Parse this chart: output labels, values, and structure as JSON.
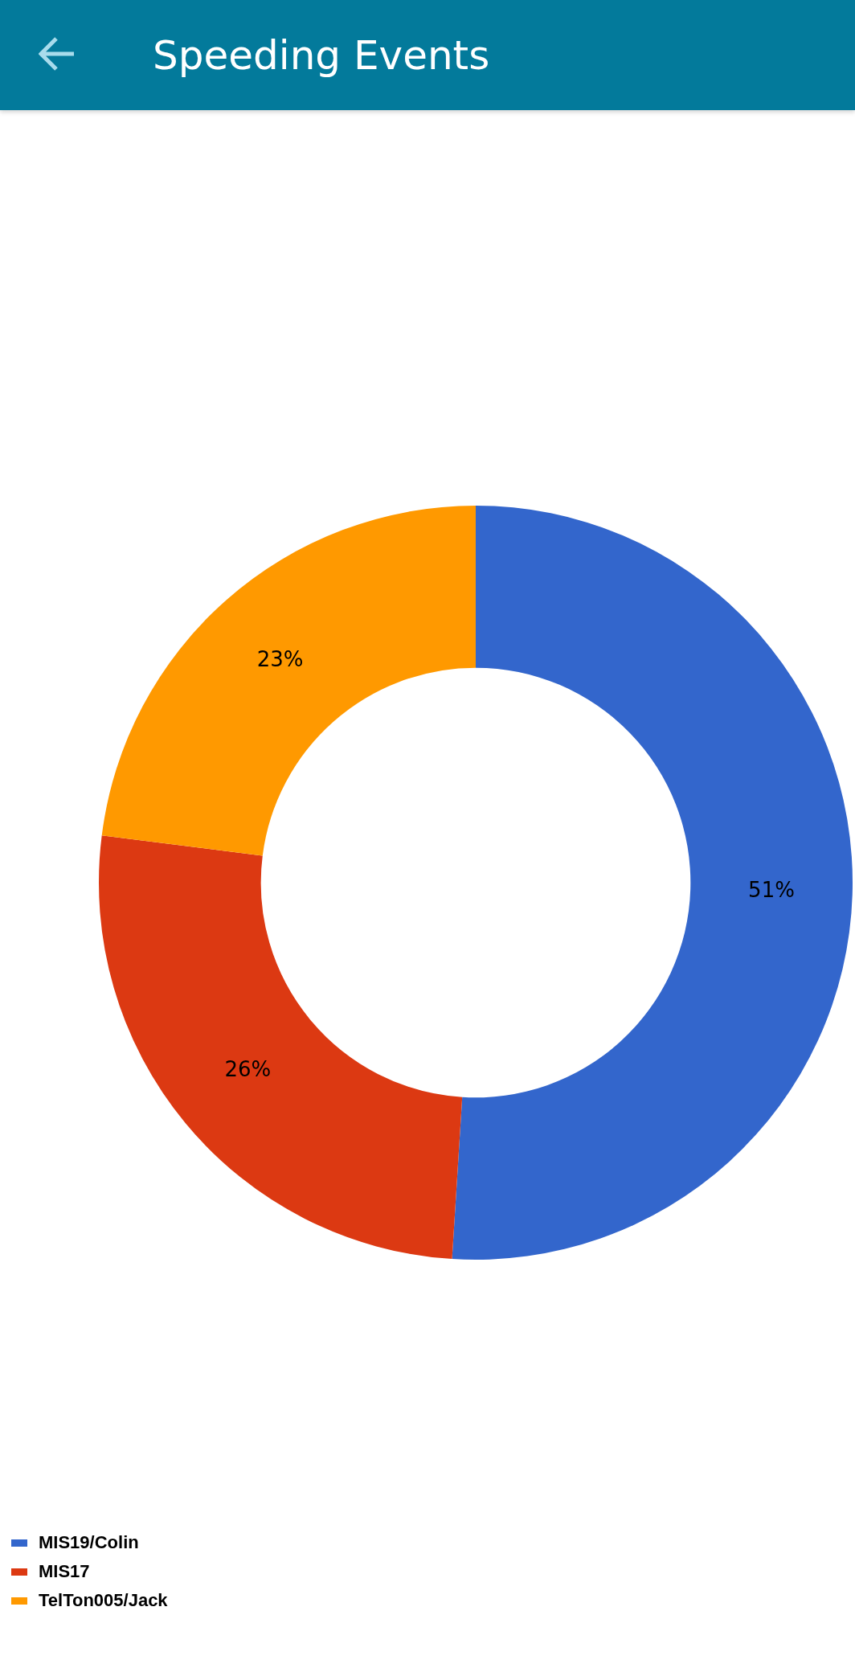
{
  "chart_data": {
    "type": "donut",
    "title": "Speeding Events",
    "categories": [
      "MIS19/Colin",
      "MIS17",
      "TelTon005/Jack"
    ],
    "values": [
      51,
      26,
      23
    ],
    "colors": [
      "#3366cc",
      "#dc3912",
      "#ff9900"
    ],
    "value_labels": [
      "51%",
      "26%",
      "23%"
    ],
    "legend": "bottom left"
  }
}
